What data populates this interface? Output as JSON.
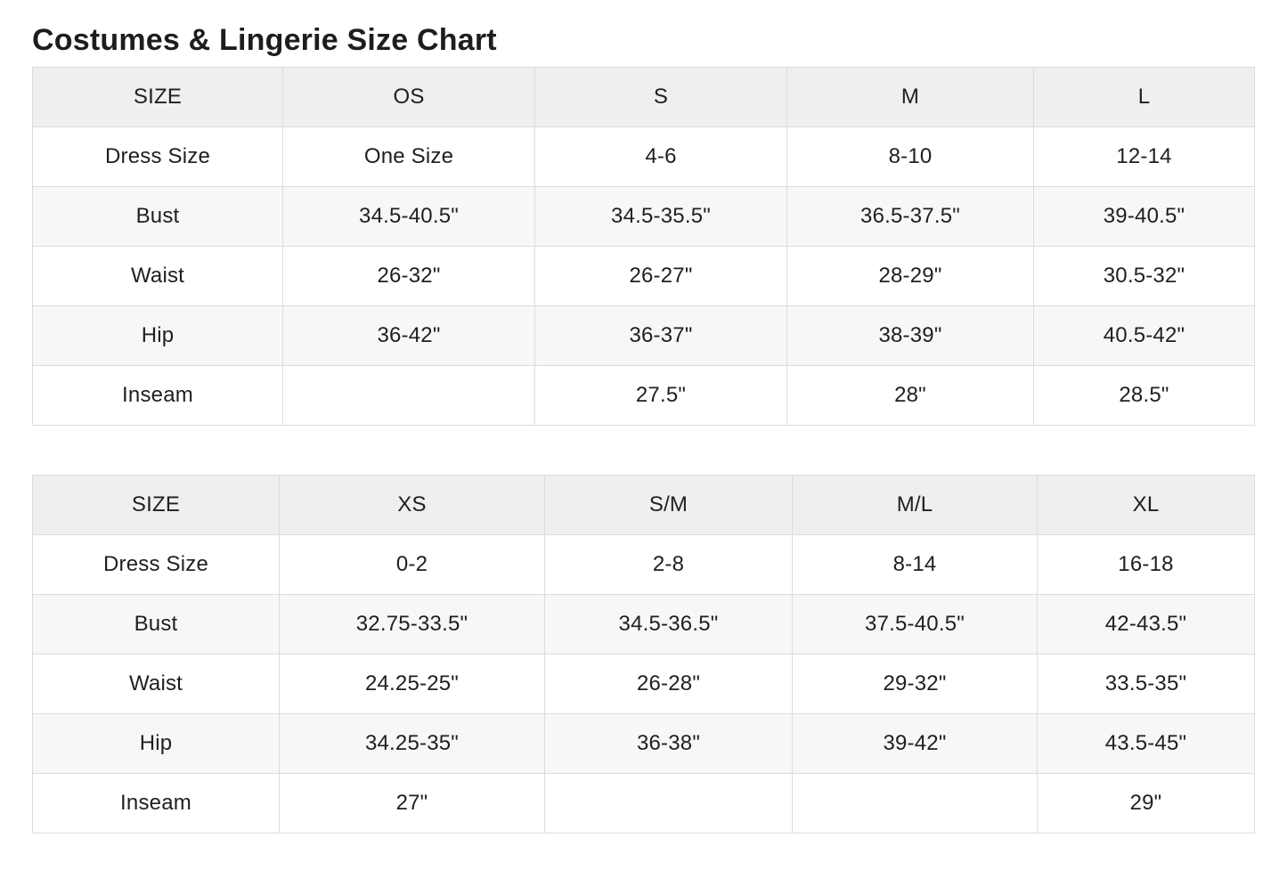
{
  "page": {
    "title": "Costumes & Lingerie Size Chart"
  },
  "colors": {
    "header_bg": "#efefef",
    "stripe_bg": "#f7f7f7",
    "border": "#dcdcdc",
    "text": "#1f1f1f"
  },
  "table1": {
    "headers": [
      "SIZE",
      "OS",
      "S",
      "M",
      "L"
    ],
    "rows": [
      {
        "label": "Dress Size",
        "values": [
          "One Size",
          "4-6",
          "8-10",
          "12-14"
        ]
      },
      {
        "label": "Bust",
        "values": [
          "34.5-40.5\"",
          "34.5-35.5\"",
          "36.5-37.5\"",
          "39-40.5\""
        ]
      },
      {
        "label": "Waist",
        "values": [
          "26-32\"",
          "26-27\"",
          "28-29\"",
          "30.5-32\""
        ]
      },
      {
        "label": "Hip",
        "values": [
          "36-42\"",
          "36-37\"",
          "38-39\"",
          "40.5-42\""
        ]
      },
      {
        "label": "Inseam",
        "values": [
          "",
          "27.5\"",
          "28\"",
          "28.5\""
        ]
      }
    ]
  },
  "table2": {
    "headers": [
      "SIZE",
      "XS",
      "S/M",
      "M/L",
      "XL"
    ],
    "rows": [
      {
        "label": "Dress Size",
        "values": [
          "0-2",
          "2-8",
          "8-14",
          "16-18"
        ]
      },
      {
        "label": "Bust",
        "values": [
          "32.75-33.5\"",
          "34.5-36.5\"",
          "37.5-40.5\"",
          "42-43.5\""
        ]
      },
      {
        "label": "Waist",
        "values": [
          "24.25-25\"",
          "26-28\"",
          "29-32\"",
          "33.5-35\""
        ]
      },
      {
        "label": "Hip",
        "values": [
          "34.25-35\"",
          "36-38\"",
          "39-42\"",
          "43.5-45\""
        ]
      },
      {
        "label": "Inseam",
        "values": [
          "27\"",
          "",
          "",
          "29\""
        ]
      }
    ]
  }
}
